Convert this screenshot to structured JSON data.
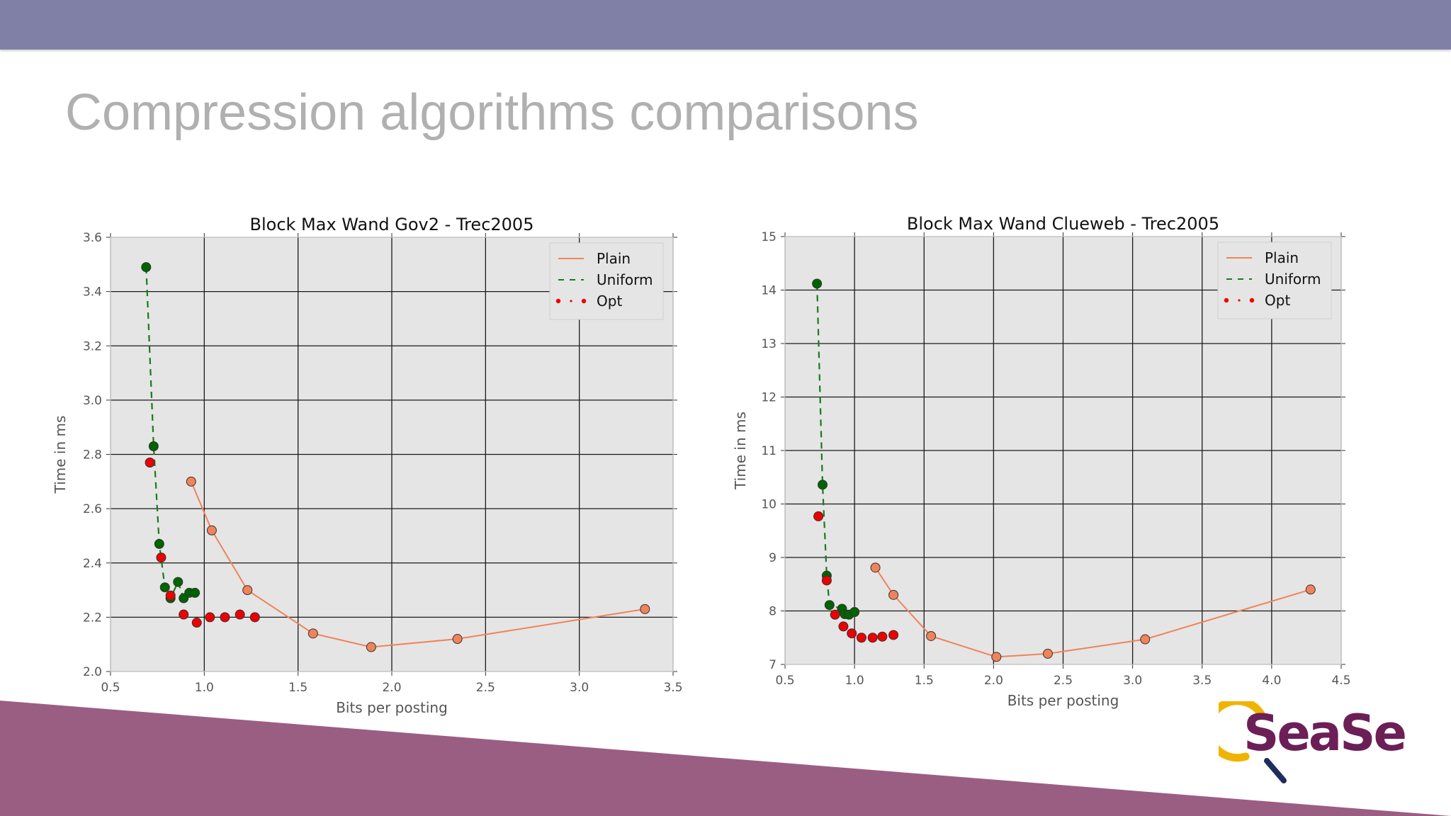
{
  "slide": {
    "title": "Compression algorithms comparisons",
    "colors": {
      "top_bar": "#8080a6",
      "bottom_band": "#9b5e83",
      "title": "#b0b0b0",
      "logo_text": "#6c1f57",
      "logo_ring": "#f0b300",
      "logo_handle": "#1d2d5c"
    },
    "logo": {
      "text": "SeaSe",
      "icon": "magnifier-logo"
    }
  },
  "chart_data": [
    {
      "type": "line",
      "title": "Block Max Wand Gov2 - Trec2005",
      "xlabel": "Bits per posting",
      "ylabel": "Time in ms",
      "xlim": [
        0.5,
        3.5
      ],
      "ylim": [
        2.0,
        3.6
      ],
      "xticks": [
        "0.5",
        "1.0",
        "1.5",
        "2.0",
        "2.5",
        "3.0",
        "3.5"
      ],
      "yticks": [
        "2.0",
        "2.2",
        "2.4",
        "2.6",
        "2.8",
        "3.0",
        "3.2",
        "3.4",
        "3.6"
      ],
      "grid": true,
      "legend": "top-right",
      "series": [
        {
          "name": "Plain",
          "color": "#f0835a",
          "marker_color": "#f0835a",
          "style": "solid",
          "connect": true,
          "x": [
            0.93,
            1.04,
            1.23,
            1.58,
            1.89,
            2.35,
            3.35
          ],
          "y": [
            2.7,
            2.52,
            2.3,
            2.14,
            2.09,
            2.12,
            2.23
          ]
        },
        {
          "name": "Uniform",
          "color": "#1a7a1a",
          "marker_color": "#006400",
          "style": "dashed",
          "connect": true,
          "x": [
            0.69,
            0.73,
            0.76,
            0.79,
            0.82,
            0.86,
            0.89,
            0.92,
            0.95
          ],
          "y": [
            3.49,
            2.83,
            2.47,
            2.31,
            2.27,
            2.33,
            2.27,
            2.29,
            2.29
          ]
        },
        {
          "name": "Opt",
          "color": "#dd0000",
          "marker_color": "#ee0000",
          "style": "dotted",
          "connect": false,
          "x": [
            0.71,
            0.77,
            0.82,
            0.89,
            0.96,
            1.03,
            1.11,
            1.19,
            1.27
          ],
          "y": [
            2.77,
            2.42,
            2.28,
            2.21,
            2.18,
            2.2,
            2.2,
            2.21,
            2.2
          ]
        }
      ]
    },
    {
      "type": "line",
      "title": "Block Max Wand Clueweb - Trec2005",
      "xlabel": "Bits per posting",
      "ylabel": "Time in ms",
      "xlim": [
        0.5,
        4.5
      ],
      "ylim": [
        7,
        15
      ],
      "xticks": [
        "0.5",
        "1.0",
        "1.5",
        "2.0",
        "2.5",
        "3.0",
        "3.5",
        "4.0",
        "4.5"
      ],
      "yticks": [
        "7",
        "8",
        "9",
        "10",
        "11",
        "12",
        "13",
        "14",
        "15"
      ],
      "grid": true,
      "legend": "top-right",
      "series": [
        {
          "name": "Plain",
          "color": "#f0835a",
          "marker_color": "#f0835a",
          "style": "solid",
          "connect": true,
          "x": [
            1.15,
            1.28,
            1.55,
            2.02,
            2.39,
            3.09,
            4.28
          ],
          "y": [
            8.81,
            8.3,
            7.53,
            7.14,
            7.2,
            7.47,
            8.4
          ]
        },
        {
          "name": "Uniform",
          "color": "#1a7a1a",
          "marker_color": "#006400",
          "style": "dashed",
          "connect": true,
          "x": [
            0.73,
            0.77,
            0.8,
            0.82,
            0.91,
            0.93,
            0.96,
            1.0
          ],
          "y": [
            14.12,
            10.36,
            8.66,
            8.11,
            8.04,
            7.94,
            7.93,
            7.98
          ]
        },
        {
          "name": "Opt",
          "color": "#dd0000",
          "marker_color": "#ee0000",
          "style": "dotted",
          "connect": false,
          "x": [
            0.74,
            0.8,
            0.86,
            0.92,
            0.98,
            1.05,
            1.13,
            1.2,
            1.28
          ],
          "y": [
            9.77,
            8.57,
            7.93,
            7.71,
            7.58,
            7.5,
            7.5,
            7.52,
            7.55
          ]
        }
      ]
    }
  ]
}
